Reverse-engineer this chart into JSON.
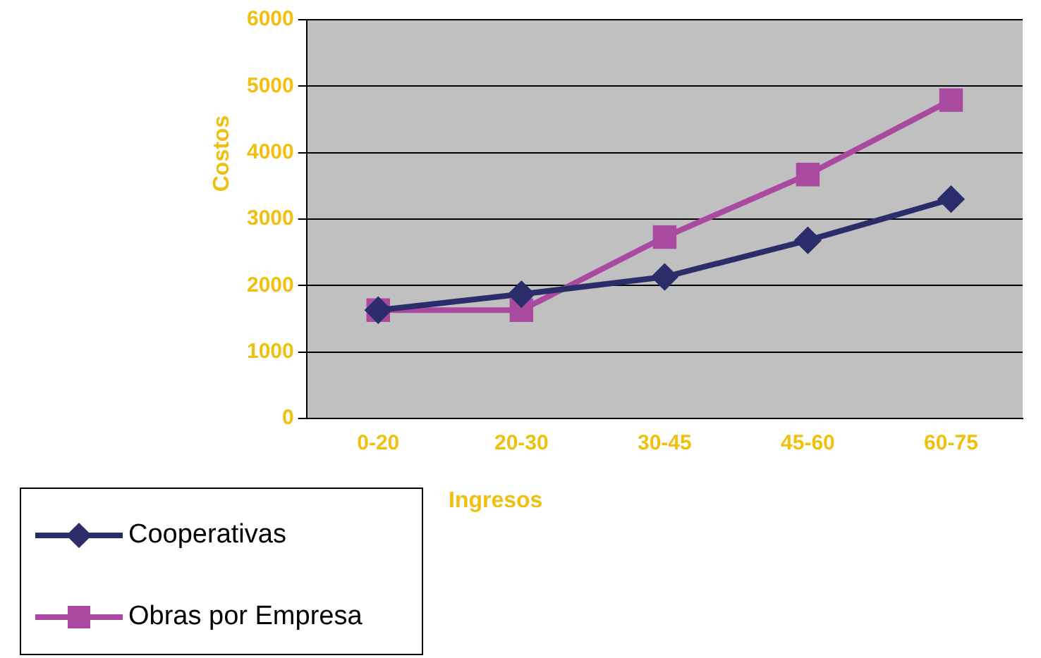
{
  "chart_data": {
    "type": "line",
    "xlabel": "Ingresos",
    "ylabel": "Costos",
    "categories": [
      "0-20",
      "20-30",
      "30-45",
      "45-60",
      "60-75"
    ],
    "series": [
      {
        "name": "Cooperativas",
        "color": "#2b2d6b",
        "marker": "diamond",
        "values": [
          1630,
          1870,
          2130,
          2680,
          3300
        ]
      },
      {
        "name": "Obras por Empresa",
        "color": "#a9499f",
        "marker": "square",
        "values": [
          1630,
          1630,
          2730,
          3670,
          4790
        ]
      }
    ],
    "ylim": [
      0,
      6000
    ],
    "yticks": [
      0,
      1000,
      2000,
      3000,
      4000,
      5000,
      6000
    ],
    "grid": "y",
    "legend": "bottom left"
  }
}
